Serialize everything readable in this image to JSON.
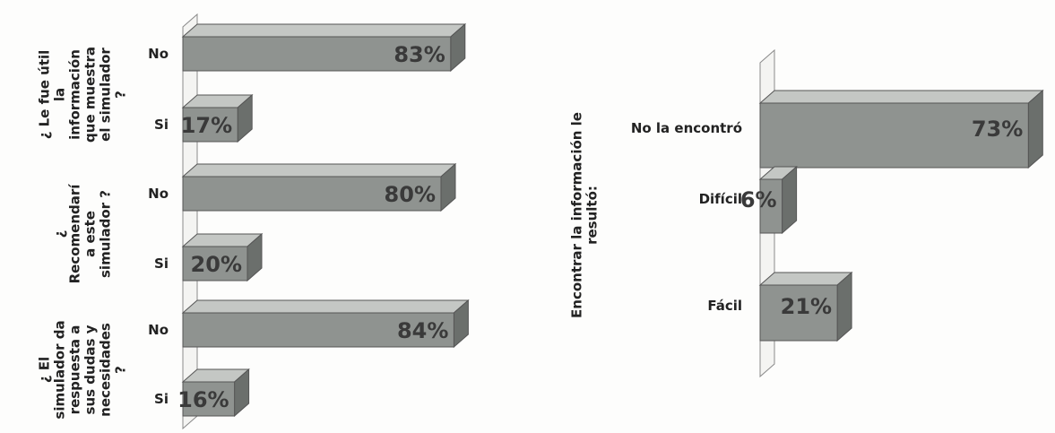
{
  "colors": {
    "bar_front": "#8f9390",
    "bar_top": "#c4c7c4",
    "bar_side": "#6b6f6c",
    "axis_wall": "#f4f4f2",
    "text": "#222222",
    "value_text": "#3a3a3a"
  },
  "chart_data": [
    {
      "type": "bar",
      "orientation": "horizontal",
      "three_d": true,
      "grid": false,
      "groups": [
        {
          "label_lines": [
            "¿ Le fue útil",
            "la",
            "información",
            "que muestra",
            "el simulador",
            "?"
          ],
          "categories": [
            "No",
            "Si"
          ],
          "values": [
            83,
            17
          ],
          "value_labels": [
            "83%",
            "17%"
          ]
        },
        {
          "label_lines": [
            "¿",
            "Recomendarí",
            "a este",
            "simulador ?"
          ],
          "categories": [
            "No",
            "Si"
          ],
          "values": [
            80,
            20
          ],
          "value_labels": [
            "80%",
            "20%"
          ]
        },
        {
          "label_lines": [
            "¿ El",
            "simulador da",
            "respuesta a",
            "sus dudas y",
            "necesidades",
            "?"
          ],
          "categories": [
            "No",
            "Si"
          ],
          "values": [
            84,
            16
          ],
          "value_labels": [
            "84%",
            "16%"
          ]
        }
      ],
      "xlim": [
        0,
        100
      ]
    },
    {
      "type": "bar",
      "orientation": "horizontal",
      "three_d": true,
      "grid": false,
      "ylabel_lines": [
        "Encontrar la información le",
        "resultó:"
      ],
      "categories": [
        "No la encontró",
        "Difícil",
        "Fácil"
      ],
      "values": [
        73,
        6,
        21
      ],
      "value_labels": [
        "73%",
        "6%",
        "21%"
      ],
      "xlim": [
        0,
        100
      ]
    }
  ]
}
